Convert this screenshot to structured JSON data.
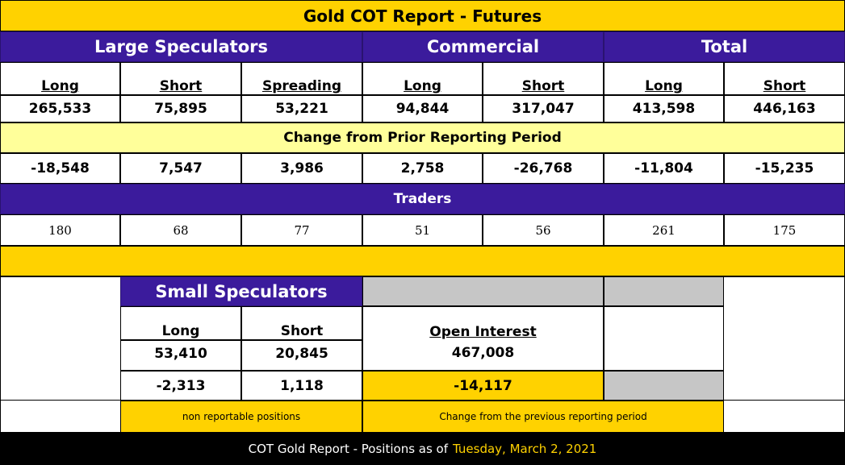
{
  "title": "Gold COT Report - Futures",
  "groups": {
    "large_speculators": "Large Speculators",
    "commercial": "Commercial",
    "total": "Total"
  },
  "headers": [
    "Long",
    "Short",
    "Spreading",
    "Long",
    "Short",
    "Long",
    "Short"
  ],
  "positions": [
    "265,533",
    "75,895",
    "53,221",
    "94,844",
    "317,047",
    "413,598",
    "446,163"
  ],
  "change_label": "Change from Prior Reporting Period",
  "changes": [
    "-18,548",
    "7,547",
    "3,986",
    "2,758",
    "-26,768",
    "-11,804",
    "-15,235"
  ],
  "traders_label": "Traders",
  "traders": [
    "180",
    "68",
    "77",
    "51",
    "56",
    "261",
    "175"
  ],
  "small_speculators": {
    "title": "Small Speculators",
    "long_label": "Long",
    "short_label": "Short",
    "long": "53,410",
    "short": "20,845",
    "long_change": "-2,313",
    "short_change": "1,118",
    "note": "non reportable positions"
  },
  "open_interest": {
    "label": "Open Interest",
    "value": "467,008",
    "change": "-14,117",
    "note": "Change from the previous reporting period"
  },
  "footer": {
    "text": "COT Gold Report - Positions as of",
    "date": "Tuesday, March 2, 2021"
  },
  "colors": {
    "gold": "#ffd200",
    "purple": "#3b1b9c",
    "cream": "#ffff9a",
    "gray": "#c6c6c6",
    "footer_bg": "#000000"
  }
}
